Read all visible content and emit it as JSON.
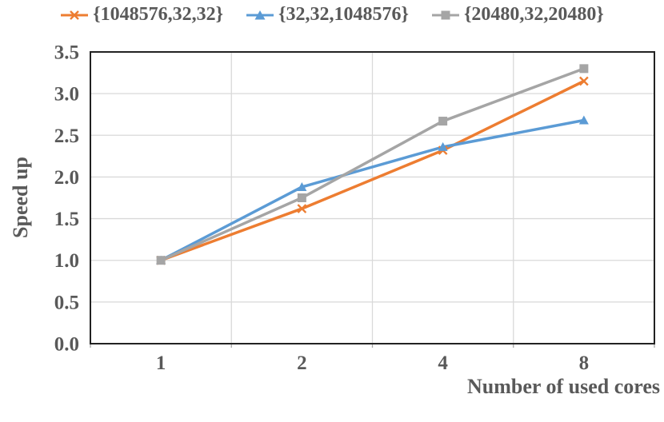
{
  "chart_data": {
    "type": "line",
    "title": "",
    "xlabel": "Number of used cores",
    "ylabel": "Speed up",
    "categories": [
      "1",
      "2",
      "4",
      "8"
    ],
    "yticks": [
      0.0,
      0.5,
      1.0,
      1.5,
      2.0,
      2.5,
      3.0,
      3.5
    ],
    "ylim": [
      0,
      3.5
    ],
    "grid": true,
    "legend_position": "top",
    "series": [
      {
        "name": "{1048576,32,32}",
        "color": "#ED7D31",
        "marker": "x",
        "values": [
          1.0,
          1.62,
          2.32,
          3.15
        ]
      },
      {
        "name": "{32,32,1048576}",
        "color": "#5B9BD5",
        "marker": "triangle",
        "values": [
          1.0,
          1.88,
          2.36,
          2.68
        ]
      },
      {
        "name": "{20480,32,20480}",
        "color": "#A5A5A5",
        "marker": "square",
        "values": [
          1.0,
          1.75,
          2.67,
          3.3
        ]
      }
    ],
    "colors": {
      "text": "#595959",
      "gridline": "#D9D9D9",
      "tick": "#A6A6A6",
      "border": "#222222",
      "background": "#FFFFFF"
    }
  }
}
